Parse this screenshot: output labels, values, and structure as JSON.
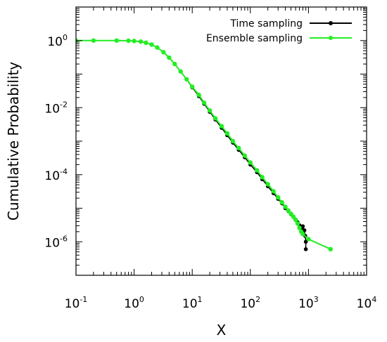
{
  "chart_data": {
    "type": "line",
    "title": "",
    "xlabel": "X",
    "ylabel": "Cumulative Probability",
    "x_scale": "log",
    "y_scale": "log",
    "xlim": [
      0.1,
      10000
    ],
    "ylim": [
      1e-07,
      10
    ],
    "x_ticks": [
      {
        "value": 0.1,
        "base": "10",
        "exp": "-1"
      },
      {
        "value": 1,
        "base": "10",
        "exp": "0"
      },
      {
        "value": 10,
        "base": "10",
        "exp": "1"
      },
      {
        "value": 100,
        "base": "10",
        "exp": "2"
      },
      {
        "value": 1000,
        "base": "10",
        "exp": "3"
      },
      {
        "value": 10000,
        "base": "10",
        "exp": "4"
      }
    ],
    "y_ticks": [
      {
        "value": 1,
        "base": "10",
        "exp": "0"
      },
      {
        "value": 0.01,
        "base": "10",
        "exp": "-2"
      },
      {
        "value": 0.0001,
        "base": "10",
        "exp": "-4"
      },
      {
        "value": 1e-06,
        "base": "10",
        "exp": "-6"
      }
    ],
    "grid": false,
    "legend_position": "top-right",
    "series": [
      {
        "name": "Time sampling",
        "color": "#000000",
        "marker": "circle",
        "x": [
          0.1,
          0.2,
          0.5,
          0.8,
          1.0,
          1.3,
          1.6,
          2.0,
          2.5,
          3.2,
          4.0,
          5.0,
          6.3,
          8.0,
          10,
          13,
          16,
          20,
          25,
          32,
          40,
          50,
          63,
          80,
          100,
          130,
          160,
          200,
          250,
          300,
          350,
          400,
          450,
          500,
          550,
          600,
          650,
          700,
          750,
          800,
          850,
          880,
          900,
          900
        ],
        "y": [
          1.0,
          1.0,
          1.0,
          0.99,
          0.97,
          0.93,
          0.86,
          0.76,
          0.62,
          0.45,
          0.31,
          0.2,
          0.12,
          0.07,
          0.04,
          0.022,
          0.013,
          0.0075,
          0.0044,
          0.0025,
          0.0015,
          0.0009,
          0.00055,
          0.00033,
          0.0002,
          0.000118,
          7.3e-05,
          4.5e-05,
          2.8e-05,
          1.9e-05,
          1.4e-05,
          1e-05,
          8.2e-06,
          6.6e-06,
          5.5e-06,
          4.6e-06,
          3.8e-06,
          3.1e-06,
          2.5e-06,
          2.9e-06,
          2.2e-06,
          1.5e-06,
          1e-06,
          6e-07
        ]
      },
      {
        "name": "Ensemble sampling",
        "color": "#22ee22",
        "marker": "circle",
        "x": [
          0.1,
          0.2,
          0.5,
          0.8,
          1.0,
          1.3,
          1.6,
          2.0,
          2.5,
          3.2,
          4.0,
          5.0,
          6.3,
          8.0,
          10,
          13,
          16,
          20,
          25,
          32,
          40,
          50,
          63,
          80,
          100,
          130,
          160,
          200,
          250,
          300,
          350,
          400,
          450,
          500,
          550,
          600,
          650,
          700,
          750,
          800,
          1000,
          2400
        ],
        "y": [
          1.0,
          1.0,
          1.0,
          0.99,
          0.97,
          0.93,
          0.86,
          0.76,
          0.62,
          0.45,
          0.31,
          0.2,
          0.12,
          0.07,
          0.042,
          0.024,
          0.014,
          0.0082,
          0.0048,
          0.0028,
          0.0017,
          0.001,
          0.00062,
          0.00037,
          0.00023,
          0.000135,
          8.4e-05,
          5.2e-05,
          3.2e-05,
          2.1e-05,
          1.5e-05,
          1.1e-05,
          8.5e-06,
          6.8e-06,
          5.6e-06,
          4.5e-06,
          3.5e-06,
          2.6e-06,
          2e-06,
          1.7e-06,
          1.2e-06,
          6e-07
        ]
      }
    ]
  }
}
